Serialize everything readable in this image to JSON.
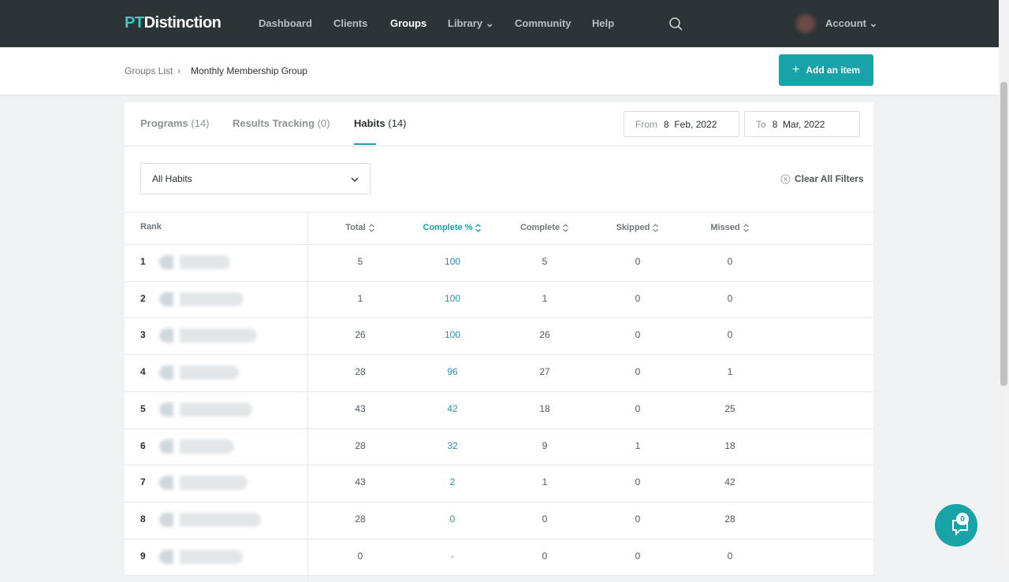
{
  "nav": {
    "logo_pt": "PT",
    "logo_rest": "Distinction",
    "links": [
      "Dashboard",
      "Clients",
      "Groups",
      "Library",
      "Community",
      "Help"
    ],
    "active": "Groups",
    "account": "Account"
  },
  "breadcrumb": [
    "Groups List",
    "Monthly Membership Group"
  ],
  "add_button": "Add an item",
  "tabs": [
    {
      "label": "Programs",
      "count": "(14)"
    },
    {
      "label": "Results Tracking",
      "count": "(0)"
    },
    {
      "label": "Habits",
      "count": "(14)"
    }
  ],
  "active_tab": 2,
  "date_from": {
    "label": "From",
    "value": "8  Feb, 2022"
  },
  "date_to": {
    "label": "To",
    "value": "8  Mar, 2022"
  },
  "filter": "All Habits",
  "clear_filters": "Clear All Filters",
  "table": {
    "headers": [
      "Rank",
      "Total",
      "Complete %",
      "Complete",
      "Skipped",
      "Missed"
    ],
    "sorted_column": 2,
    "rows": [
      [
        1,
        5,
        100,
        5,
        0,
        0
      ],
      [
        2,
        1,
        100,
        1,
        0,
        0
      ],
      [
        3,
        26,
        100,
        26,
        0,
        0
      ],
      [
        4,
        28,
        96,
        27,
        0,
        1
      ],
      [
        5,
        43,
        42,
        18,
        0,
        25
      ],
      [
        6,
        28,
        32,
        9,
        1,
        18
      ],
      [
        7,
        43,
        2,
        1,
        0,
        42
      ],
      [
        8,
        28,
        0,
        0,
        0,
        28
      ],
      [
        9,
        0,
        "-",
        0,
        0,
        0
      ]
    ]
  },
  "chat_badge": 0
}
